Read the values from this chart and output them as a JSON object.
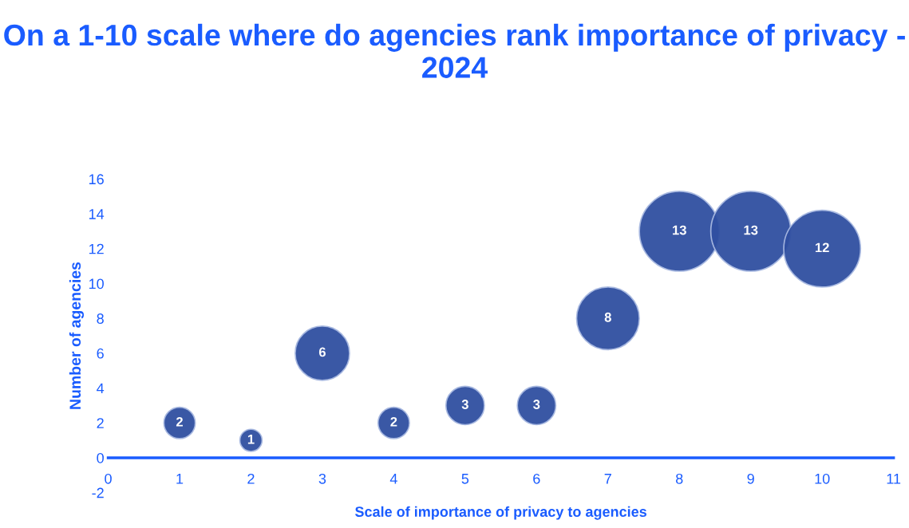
{
  "chart_data": {
    "type": "bubble",
    "title": "On a 1-10 scale where do agencies rank importance of privacy - 2024",
    "xlabel": "Scale of importance of privacy to agencies",
    "ylabel": "Number of agencies",
    "x": [
      1,
      2,
      3,
      4,
      5,
      6,
      7,
      8,
      9,
      10
    ],
    "values": [
      2,
      1,
      6,
      2,
      3,
      3,
      8,
      13,
      13,
      12
    ],
    "sizes": [
      0.154,
      0.077,
      0.462,
      0.154,
      0.231,
      0.231,
      0.615,
      1,
      1,
      0.923
    ],
    "color": "#2f4fa0",
    "xlim": [
      0,
      11
    ],
    "xticks": [
      0,
      1,
      2,
      3,
      4,
      5,
      6,
      7,
      8,
      9,
      10,
      11
    ],
    "ylim": [
      -2,
      16
    ],
    "yticks": [
      -2,
      0,
      2,
      4,
      6,
      8,
      10,
      12,
      14,
      16
    ],
    "grid": false,
    "legend": false,
    "data_labels": true
  }
}
